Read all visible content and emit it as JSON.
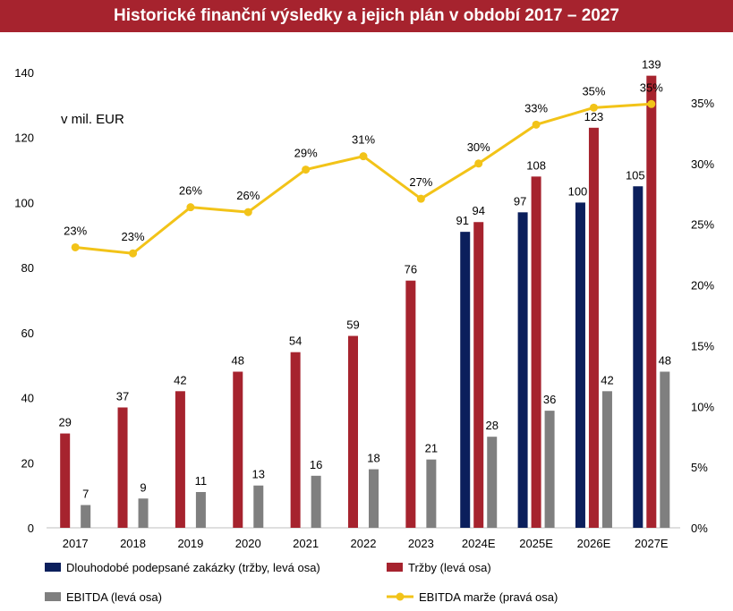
{
  "chart_data": {
    "type": "bar",
    "title": "Historické finanční výsledky a jejich plán v období 2017 – 2027",
    "unit_label": "v mil. EUR",
    "categories": [
      "2017",
      "2018",
      "2019",
      "2020",
      "2021",
      "2022",
      "2023",
      "2024E",
      "2025E",
      "2026E",
      "2027E"
    ],
    "series": [
      {
        "key": "contracts",
        "name": "Dlouhodobé podepsané zakázky (tržby, levá osa)",
        "type": "bar",
        "axis": "left",
        "color": "#0b1f5c",
        "values": [
          null,
          null,
          null,
          null,
          null,
          null,
          null,
          91,
          97,
          100,
          105
        ],
        "labels": [
          "",
          "",
          "",
          "",
          "",
          "",
          "",
          "91",
          "97",
          "100",
          "105"
        ]
      },
      {
        "key": "revenue",
        "name": "Tržby (levá osa)",
        "type": "bar",
        "axis": "left",
        "color": "#a6232e",
        "values": [
          29,
          37,
          42,
          48,
          54,
          59,
          76,
          94,
          108,
          123,
          139
        ],
        "labels": [
          "29",
          "37",
          "42",
          "48",
          "54",
          "59",
          "76",
          "94",
          "108",
          "123",
          "139"
        ]
      },
      {
        "key": "ebitda",
        "name": "EBITDA (levá osa)",
        "type": "bar",
        "axis": "left",
        "color": "#7f7f7f",
        "values": [
          7,
          9,
          11,
          13,
          16,
          18,
          21,
          28,
          36,
          42,
          48
        ],
        "labels": [
          "7",
          "9",
          "11",
          "13",
          "16",
          "18",
          "21",
          "28",
          "36",
          "42",
          "48"
        ]
      },
      {
        "key": "margin",
        "name": "EBITDA marže (pravá osa)",
        "type": "line",
        "axis": "right",
        "color": "#f2c318",
        "values": [
          23.1,
          22.6,
          26.4,
          26.0,
          29.5,
          30.6,
          27.1,
          30.0,
          33.2,
          34.6,
          34.9
        ],
        "labels": [
          "23%",
          "23%",
          "26%",
          "26%",
          "29%",
          "31%",
          "27%",
          "30%",
          "33%",
          "35%",
          "35%"
        ]
      }
    ],
    "yleft": {
      "min": 0,
      "max": 140,
      "ticks": [
        "0",
        "20",
        "40",
        "60",
        "80",
        "100",
        "120",
        "140"
      ]
    },
    "yright": {
      "min": 0,
      "max": 37.5,
      "ticks": [
        "0%",
        "5%",
        "10%",
        "15%",
        "20%",
        "25%",
        "30%",
        "35%"
      ]
    },
    "legend_position": "bottom"
  }
}
